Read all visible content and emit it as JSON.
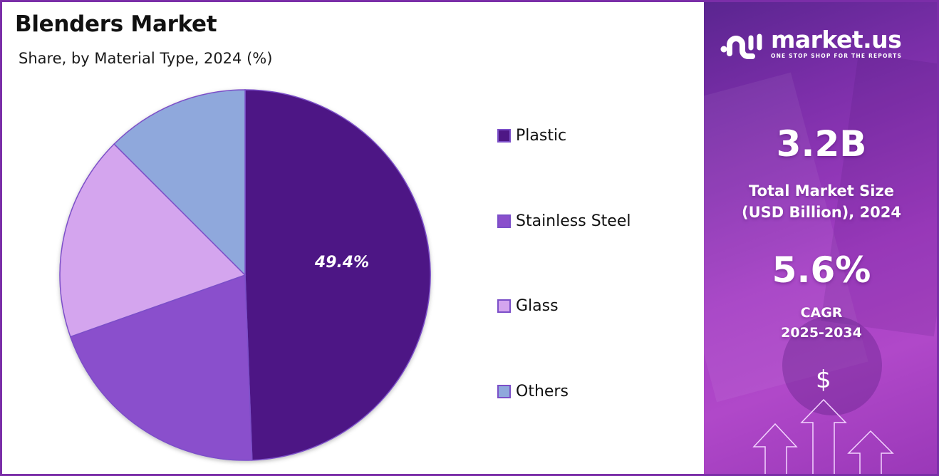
{
  "header": {
    "title": "Blenders Market",
    "subtitle": "Share, by Material Type, 2024 (%)"
  },
  "chart_data": {
    "type": "pie",
    "title": "Blenders Market",
    "subtitle": "Share, by Material Type, 2024 (%)",
    "categories": [
      "Plastic",
      "Stainless Steel",
      "Glass",
      "Others"
    ],
    "values": [
      49.4,
      20.2,
      17.9,
      12.5
    ],
    "colors": [
      "#4e1785",
      "#8a4fcc",
      "#d4a5ee",
      "#8fa8dc"
    ],
    "data_labels": [
      "49.4%",
      "",
      "",
      ""
    ],
    "start_angle_deg": 0,
    "direction": "clockwise",
    "legend_position": "right"
  },
  "pie": {
    "label": "49.4%"
  },
  "legend": {
    "items": [
      {
        "label": "Plastic",
        "color": "#4e1785"
      },
      {
        "label": "Stainless Steel",
        "color": "#8a4fcc"
      },
      {
        "label": "Glass",
        "color": "#d4a5ee"
      },
      {
        "label": "Others",
        "color": "#8fa8dc"
      }
    ]
  },
  "side_panel": {
    "logo_name": "market.us",
    "logo_tagline": "ONE STOP SHOP FOR THE REPORTS",
    "market_size_value": "3.2B",
    "market_size_label_1": "Total Market Size",
    "market_size_label_2": "(USD Billion), 2024",
    "cagr_value": "5.6%",
    "cagr_label": "CAGR",
    "cagr_period": "2025-2034",
    "dollar_symbol": "$",
    "accent_color": "#7b2ea8"
  }
}
